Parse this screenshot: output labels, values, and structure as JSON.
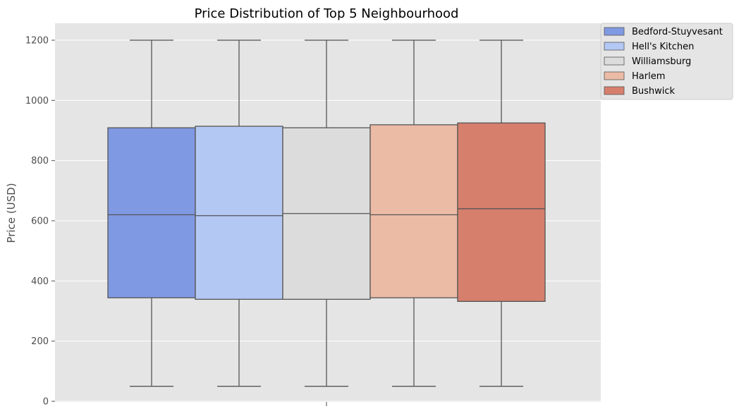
{
  "chart_data": {
    "type": "box",
    "title": "Price Distribution of Top 5 Neighbourhood",
    "xlabel": "",
    "ylabel": "Price (USD)",
    "ylim": [
      0,
      1250
    ],
    "yticks": [
      0,
      200,
      400,
      600,
      800,
      1000,
      1200
    ],
    "grid": true,
    "legend_position": "top-right",
    "series": [
      {
        "name": "Bedford-Stuyvesant",
        "color": "#8099e3",
        "whisker_low": 50,
        "q1": 344,
        "median": 620,
        "q3": 909,
        "whisker_high": 1200
      },
      {
        "name": "Hell's Kitchen",
        "color": "#b3c8f3",
        "whisker_low": 50,
        "q1": 339,
        "median": 617,
        "q3": 914,
        "whisker_high": 1200
      },
      {
        "name": "Williamsburg",
        "color": "#dcdcdc",
        "whisker_low": 50,
        "q1": 339,
        "median": 624,
        "q3": 909,
        "whisker_high": 1200
      },
      {
        "name": "Harlem",
        "color": "#ecbba6",
        "whisker_low": 50,
        "q1": 344,
        "median": 620,
        "q3": 919,
        "whisker_high": 1200
      },
      {
        "name": "Bushwick",
        "color": "#d77f6d",
        "whisker_low": 50,
        "q1": 332,
        "median": 640,
        "q3": 925,
        "whisker_high": 1200
      }
    ]
  }
}
